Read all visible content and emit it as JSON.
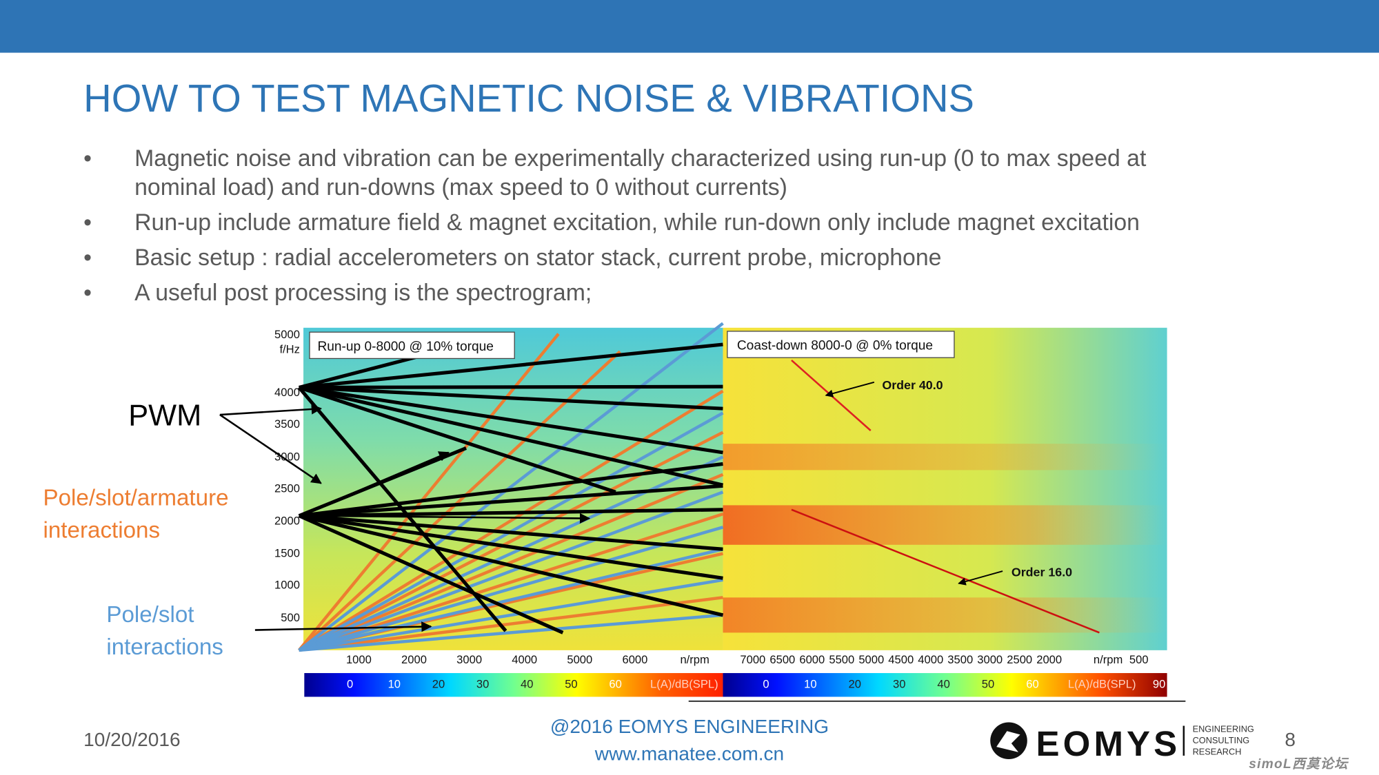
{
  "header": {
    "title": "HOW TO TEST MAGNETIC NOISE & VIBRATIONS"
  },
  "bullets": [
    [
      "Magnetic noise and vibration can be experimentally characterized using run-up (0 to max speed at",
      "nominal load) and run-downs (max speed to 0 without currents)"
    ],
    [
      "Run-up include armature field & magnet excitation, while run-down only include magnet excitation"
    ],
    [
      "Basic setup : radial accelerometers on stator stack, current probe, microphone"
    ],
    [
      "A useful post processing is the spectrogram;"
    ]
  ],
  "figure": {
    "left_plot": {
      "title": "Run-up 0-8000 @ 10% torque",
      "y_axis_label": "f/Hz",
      "yticks": [
        "5000",
        "4000",
        "3500",
        "3000",
        "2500",
        "2000",
        "1500",
        "1000",
        "500"
      ],
      "xticks": [
        "1000",
        "2000",
        "3000",
        "4000",
        "5000",
        "6000"
      ],
      "x_axis_label": "n/rpm",
      "colorbar_ticks": [
        "0",
        "10",
        "20",
        "30",
        "40",
        "50",
        "60"
      ],
      "colorbar_label": "L(A)/dB(SPL)"
    },
    "right_plot": {
      "title": "Coast-down 8000-0 @ 0% torque",
      "annotations": [
        "Order 40.0",
        "Order 16.0"
      ],
      "xticks": [
        "7000",
        "6500",
        "6000",
        "5500",
        "5000",
        "4500",
        "4000",
        "3500",
        "3000",
        "2500",
        "2000"
      ],
      "x_axis_label": "n/rpm",
      "x_tick_end": "500",
      "colorbar_ticks": [
        "0",
        "10",
        "20",
        "30",
        "40",
        "50",
        "60"
      ],
      "colorbar_label": "L(A)/dB(SPL)",
      "colorbar_max": "90"
    },
    "callouts": {
      "pwm": "PWM",
      "pole_slot_armature": [
        "Pole/slot/armature",
        "interactions"
      ],
      "pole_slot": [
        "Pole/slot",
        "interactions"
      ]
    }
  },
  "footer": {
    "date": "10/20/2016",
    "copyright": "@2016 EOMYS ENGINEERING",
    "website": "www.manatee.com.cn",
    "logo": {
      "name": "EOMYS",
      "tagline": [
        "ENGINEERING",
        "CONSULTING",
        "RESEARCH"
      ]
    },
    "page_number": "8",
    "watermark": "simoL西莫论坛"
  }
}
